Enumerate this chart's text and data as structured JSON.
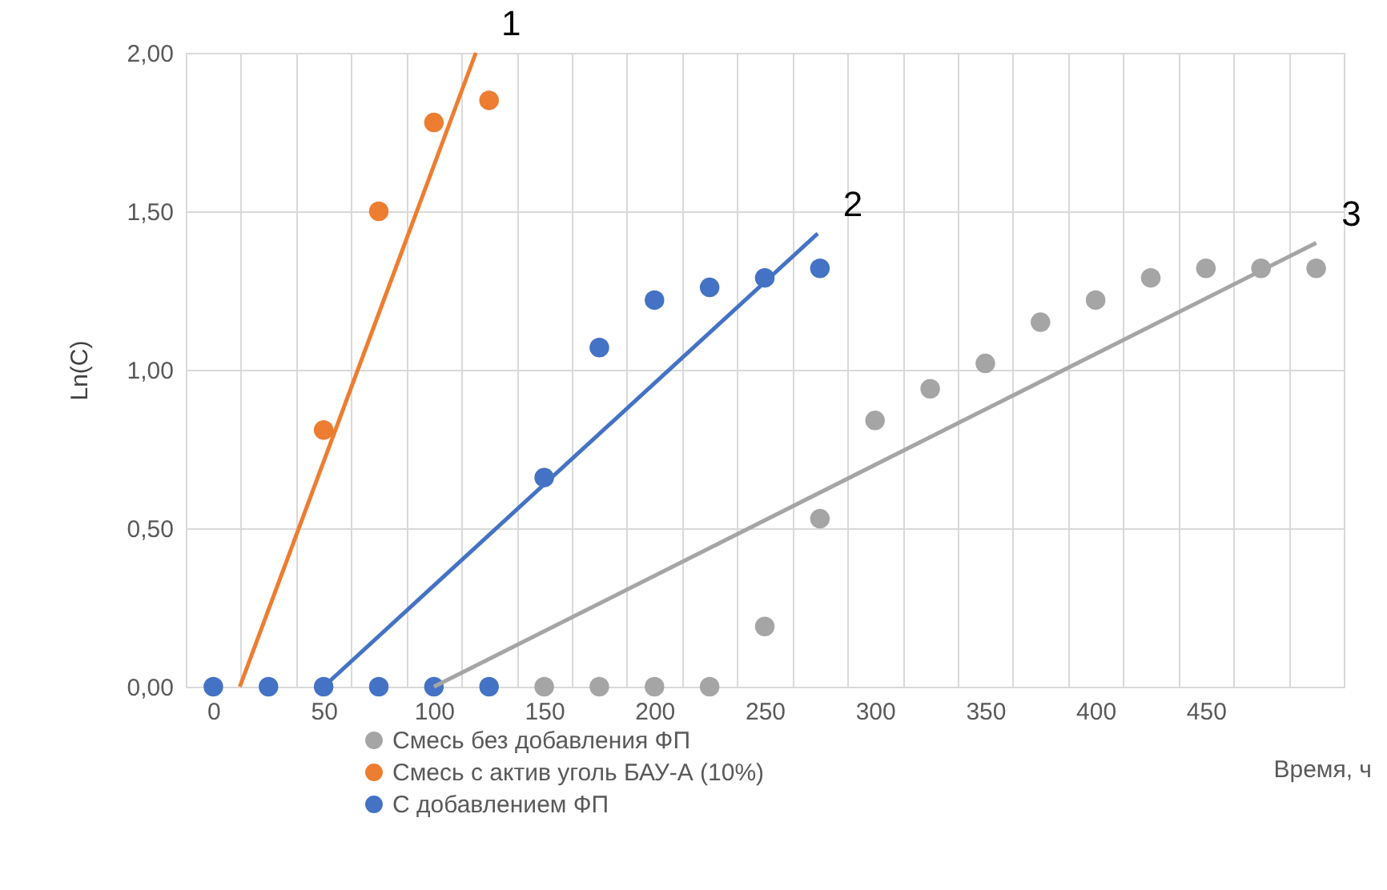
{
  "chart_data": {
    "type": "scatter",
    "xlabel": "Время, ч",
    "ylabel": "Ln(C)",
    "xlim": [
      -12.5,
      512.5
    ],
    "ylim": [
      0,
      2.0
    ],
    "xticks": [
      {
        "value": -12.5,
        "label": null
      },
      0,
      {
        "value": 12.5,
        "label": null
      },
      {
        "value": 37.5,
        "label": null
      },
      50,
      {
        "value": 62.5,
        "label": null
      },
      {
        "value": 87.5,
        "label": null
      },
      100,
      {
        "value": 112.5,
        "label": null
      },
      {
        "value": 137.5,
        "label": null
      },
      150,
      {
        "value": 162.5,
        "label": null
      },
      {
        "value": 187.5,
        "label": null
      },
      200,
      {
        "value": 212.5,
        "label": null
      },
      {
        "value": 237.5,
        "label": null
      },
      250,
      {
        "value": 262.5,
        "label": null
      },
      {
        "value": 287.5,
        "label": null
      },
      300,
      {
        "value": 312.5,
        "label": null
      },
      {
        "value": 337.5,
        "label": null
      },
      350,
      {
        "value": 362.5,
        "label": null
      },
      {
        "value": 387.5,
        "label": null
      },
      400,
      {
        "value": 412.5,
        "label": null
      },
      {
        "value": 437.5,
        "label": null
      },
      450,
      {
        "value": 462.5,
        "label": null
      },
      {
        "value": 487.5,
        "label": null
      },
      {
        "value": 512.5,
        "label": null
      }
    ],
    "yticks": [
      {
        "value": 0,
        "label": "0,00"
      },
      {
        "value": 0.5,
        "label": "0,50"
      },
      {
        "value": 1.0,
        "label": "1,00"
      },
      {
        "value": 1.5,
        "label": "1,50"
      },
      {
        "value": 2.0,
        "label": "2,00"
      }
    ],
    "grid": true,
    "legend": "bottom",
    "series": [
      {
        "name": "Смесь без добавления ФП",
        "marker": "circle",
        "color": "#a5a5a5",
        "x": [
          150,
          175,
          200,
          225,
          250,
          275,
          300,
          325,
          350,
          375,
          400,
          425,
          450,
          475,
          500
        ],
        "values": [
          0,
          0,
          0,
          0,
          0.19,
          0.53,
          0.84,
          0.94,
          1.02,
          1.15,
          1.22,
          1.29,
          1.32,
          1.32,
          1.32
        ]
      },
      {
        "name": "Смесь с актив уголь БАУ-А (10%)",
        "marker": "circle",
        "color": "#ed7d31",
        "x": [
          50,
          75,
          100,
          125
        ],
        "values": [
          0.81,
          1.5,
          1.78,
          1.85
        ]
      },
      {
        "name": "С добавлением ФП",
        "marker": "circle",
        "color": "#4472c4",
        "x": [
          0,
          25,
          50,
          75,
          100,
          125,
          150,
          175,
          200,
          225,
          250,
          275
        ],
        "values": [
          0,
          0,
          0,
          0,
          0,
          0,
          0.66,
          1.07,
          1.22,
          1.26,
          1.29,
          1.32
        ]
      },
      {
        "type": "line",
        "marker": "none",
        "color": "#ed7d31",
        "x": [
          12,
          119
        ],
        "values": [
          0,
          2.0
        ]
      },
      {
        "type": "line",
        "marker": "none",
        "color": "#4472c4",
        "x": [
          50,
          274
        ],
        "values": [
          0,
          1.43
        ]
      },
      {
        "type": "line",
        "marker": "none",
        "color": "#a5a5a5",
        "x": [
          100,
          500
        ],
        "values": [
          0,
          1.4
        ]
      }
    ],
    "annotations": [
      "1",
      "2",
      "3"
    ]
  }
}
